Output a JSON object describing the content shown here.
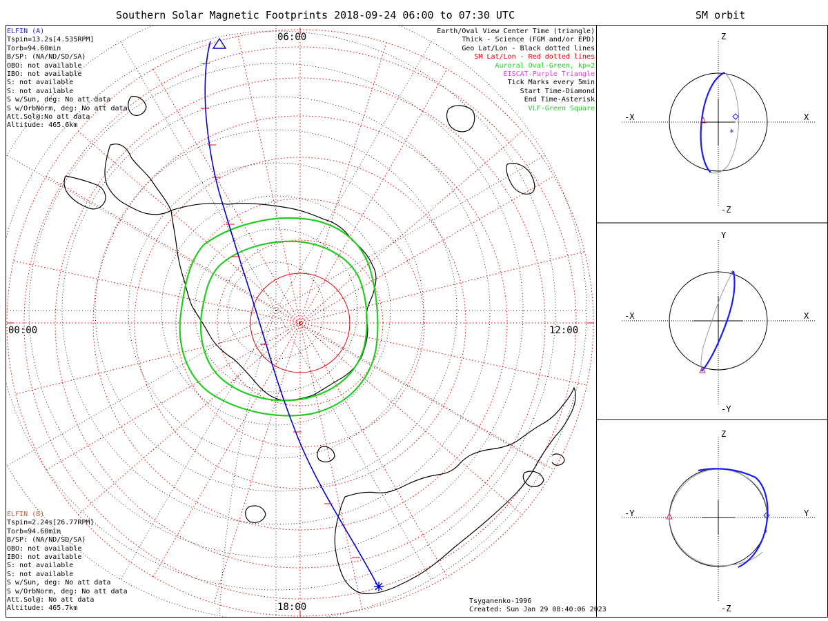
{
  "main_title": "Southern Solar Magnetic Footprints 2018-09-24 06:00 to 07:30 UTC",
  "orbit_title": "SM orbit",
  "clock_labels": {
    "top": "06:00",
    "left": "00:00",
    "right": "12:00",
    "bottom": "18:00"
  },
  "elfin_a": {
    "lines": [
      "ELFIN (A)",
      "Tspin=13.2s[4.535RPM]",
      "Torb=94.60min",
      "B/SP: (NA/ND/SD/SA)",
      "OBO: not available",
      "IBO: not available",
      "S: not available",
      "S: not available",
      "S w/Sun, deg: No att data",
      "S w/OrbNorm, deg: No att data",
      "Att.Sol@:No att data",
      "Altitude: 465.6km"
    ]
  },
  "elfin_b": {
    "lines": [
      "ELFIN (B)",
      "Tspin=2.24s[26.77RPM]",
      "Torb=94.60min",
      "B/SP: (NA/ND/SD/SA)",
      "OBO: not available",
      "IBO: not available",
      "S: not available",
      "S: not available",
      "S w/Sun, deg: No att data",
      "S w/OrbNorm, deg: No att data",
      "Att.Sol@: No att data",
      "Altitude: 465.7km"
    ]
  },
  "legend": [
    {
      "text": "Earth/Oval View Center Time (triangle)",
      "color": "#000000"
    },
    {
      "text": "Thick - Science (FGM and/or EPD)",
      "color": "#000000"
    },
    {
      "text": "Geo Lat/Lon - Black dotted lines",
      "color": "#000000"
    },
    {
      "text": "SM Lat/Lon - Red dotted lines",
      "color": "#e00000"
    },
    {
      "text": "Auroral Oval-Green, kp=2",
      "color": "#22cc22"
    },
    {
      "text": "EISCAT-Purple Triangle",
      "color": "#dd44dd"
    },
    {
      "text": "Tick Marks every 5min",
      "color": "#000000"
    },
    {
      "text": "Start Time-Diamond",
      "color": "#000000"
    },
    {
      "text": "End Time-Asterisk",
      "color": "#000000"
    },
    {
      "text": "VLF-Green Square",
      "color": "#22cc22"
    }
  ],
  "credits": {
    "model": "Tsyganenko-1996",
    "created": "Created: Sun Jan 29 08:40:06 2023"
  },
  "orbit_panels": [
    {
      "top": "Z",
      "bottom": "-Z",
      "left": "-X",
      "right": "X"
    },
    {
      "top": "Y",
      "bottom": "-Y",
      "left": "-X",
      "right": "X"
    },
    {
      "top": "Z",
      "bottom": "-Z",
      "left": "-Y",
      "right": "Y"
    }
  ],
  "colors": {
    "elfin_a": "#1a1aff",
    "elfin_b": "#e05020",
    "track": "#0000cc",
    "oval": "#22cc22",
    "sm_grid": "#e00000",
    "geo_grid": "#000000"
  }
}
